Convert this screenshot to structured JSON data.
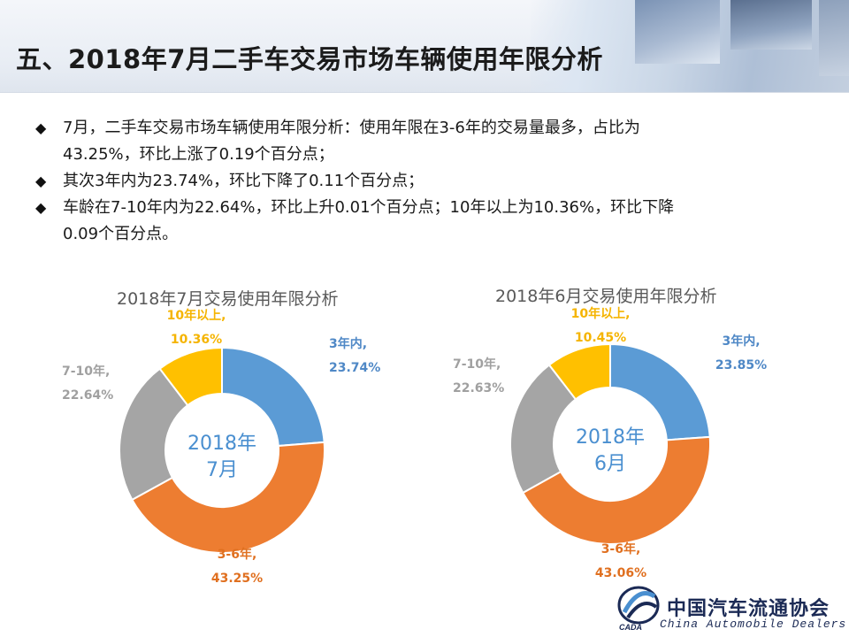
{
  "header": {
    "title": "五、2018年7月二手车交易市场车辆使用年限分析"
  },
  "bullets": [
    {
      "line1": "7月，二手车交易市场车辆使用年限分析：使用年限在3-6年的交易量最多，占比为",
      "line2": "43.25%，环比上涨了0.19个百分点；"
    },
    {
      "line1": "其次3年内为23.74%，环比下降了0.11个百分点；",
      "line2": ""
    },
    {
      "line1": "车龄在7-10年内为22.64%，环比上升0.01个百分点；10年以上为10.36%，环比下降",
      "line2": "0.09个百分点。"
    }
  ],
  "bullet_symbol": "◆",
  "colors": {
    "blue": "#5b9bd5",
    "orange": "#ed7d31",
    "gray": "#a5a5a5",
    "yellow": "#ffc000",
    "center_text": "#4a8fd0"
  },
  "chart_data": [
    {
      "type": "pie",
      "donut": true,
      "title": "2018年7月交易使用年限分析",
      "center_label": [
        "2018年",
        "7月"
      ],
      "categories": [
        "3年内",
        "3-6年",
        "7-10年",
        "10年以上"
      ],
      "values": [
        23.74,
        43.25,
        22.64,
        10.36
      ],
      "data_labels": [
        {
          "name": "3年内,",
          "value": "23.74%"
        },
        {
          "name": "3-6年,",
          "value": "43.25%"
        },
        {
          "name": "7-10年,",
          "value": "22.64%"
        },
        {
          "name": "10年以上,",
          "value": "10.36%"
        }
      ],
      "colors": [
        "#5b9bd5",
        "#ed7d31",
        "#a5a5a5",
        "#ffc000"
      ],
      "start_angle": "12 o'clock, clockwise"
    },
    {
      "type": "pie",
      "donut": true,
      "title": "2018年6月交易使用年限分析",
      "center_label": [
        "2018年",
        "6月"
      ],
      "categories": [
        "3年内",
        "3-6年",
        "7-10年",
        "10年以上"
      ],
      "values": [
        23.85,
        43.06,
        22.63,
        10.45
      ],
      "data_labels": [
        {
          "name": "3年内,",
          "value": "23.85%"
        },
        {
          "name": "3-6年,",
          "value": "43.06%"
        },
        {
          "name": "7-10年,",
          "value": "22.63%"
        },
        {
          "name": "10年以上,",
          "value": "10.45%"
        }
      ],
      "colors": [
        "#5b9bd5",
        "#ed7d31",
        "#a5a5a5",
        "#ffc000"
      ],
      "start_angle": "12 o'clock, clockwise"
    }
  ],
  "logo": {
    "name_cn": "中国汽车流通协会",
    "name_en": "China Automobile Dealers",
    "abbr": "CADA"
  }
}
